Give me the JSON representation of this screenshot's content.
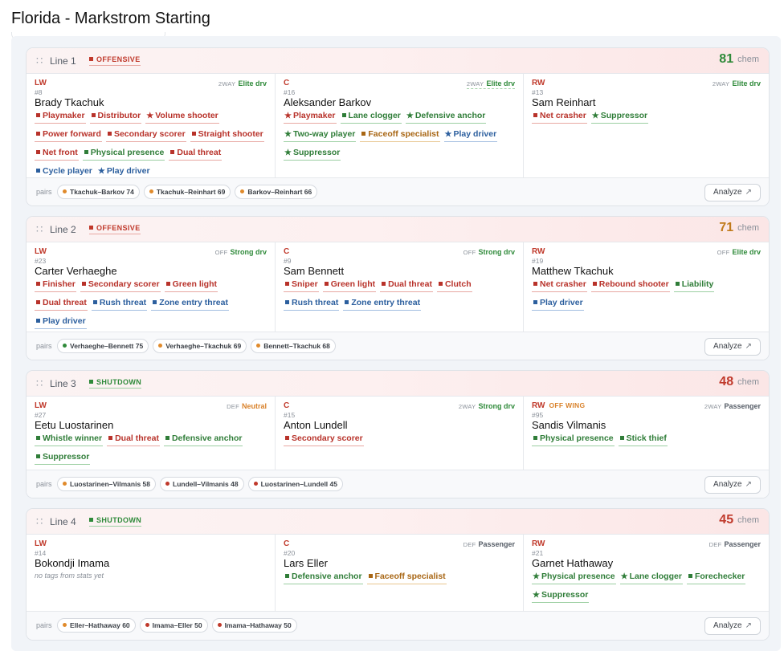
{
  "page_title": "Florida - Markstrom Starting",
  "analyze_label": "Analyze",
  "pairs_label": "pairs",
  "chem_unit": "chem",
  "lines": [
    {
      "name": "Line 1",
      "style": "OFFENSIVE",
      "chem": "81",
      "chem_color": "#2f8a3a",
      "players": [
        {
          "pos": "LW",
          "pos_note": "",
          "role_prefix": "2WAY",
          "role": "Elite drv",
          "num": "#8",
          "name": "Brady Tkachuk",
          "tags": [
            {
              "label": "Playmaker",
              "color": "red",
              "mark": "sq"
            },
            {
              "label": "Distributor",
              "color": "red",
              "mark": "sq"
            },
            {
              "label": "Volume shooter",
              "color": "red",
              "mark": "star"
            },
            {
              "label": "Power forward",
              "color": "red",
              "mark": "sq"
            },
            {
              "label": "Secondary scorer",
              "color": "red",
              "mark": "sq"
            },
            {
              "label": "Straight shooter",
              "color": "red",
              "mark": "sq"
            },
            {
              "label": "Net front",
              "color": "red",
              "mark": "sq"
            },
            {
              "label": "Physical presence",
              "color": "green",
              "mark": "sq"
            },
            {
              "label": "Dual threat",
              "color": "red",
              "mark": "sq"
            },
            {
              "label": "Cycle player",
              "color": "blue",
              "mark": "sq"
            },
            {
              "label": "Play driver",
              "color": "blue",
              "mark": "star"
            }
          ]
        },
        {
          "pos": "C",
          "pos_note": "",
          "role_prefix": "2WAY",
          "role": "Elite drv",
          "num": "#16",
          "name": "Aleksander Barkov",
          "tags": [
            {
              "label": "Playmaker",
              "color": "red",
              "mark": "star"
            },
            {
              "label": "Lane clogger",
              "color": "green",
              "mark": "sq"
            },
            {
              "label": "Defensive anchor",
              "color": "green",
              "mark": "star"
            },
            {
              "label": "Two-way player",
              "color": "green",
              "mark": "star"
            },
            {
              "label": "Faceoff specialist",
              "color": "orange",
              "mark": "sq"
            },
            {
              "label": "Play driver",
              "color": "blue",
              "mark": "star"
            },
            {
              "label": "Suppressor",
              "color": "green",
              "mark": "star"
            }
          ]
        },
        {
          "pos": "RW",
          "pos_note": "",
          "role_prefix": "2WAY",
          "role": "Elite drv",
          "num": "#13",
          "name": "Sam Reinhart",
          "tags": [
            {
              "label": "Net crasher",
              "color": "red",
              "mark": "sq"
            },
            {
              "label": "Suppressor",
              "color": "green",
              "mark": "star"
            }
          ]
        }
      ],
      "pairs": [
        {
          "label": "Tkachuk–Barkov 74",
          "dot": "orange"
        },
        {
          "label": "Tkachuk–Reinhart 69",
          "dot": "orange"
        },
        {
          "label": "Barkov–Reinhart 66",
          "dot": "orange"
        }
      ]
    },
    {
      "name": "Line 2",
      "style": "OFFENSIVE",
      "chem": "71",
      "chem_color": "#c07a1a",
      "players": [
        {
          "pos": "LW",
          "pos_note": "",
          "role_prefix": "OFF",
          "role": "Strong drv",
          "num": "#23",
          "name": "Carter Verhaeghe",
          "tags": [
            {
              "label": "Finisher",
              "color": "red",
              "mark": "sq"
            },
            {
              "label": "Secondary scorer",
              "color": "red",
              "mark": "sq"
            },
            {
              "label": "Green light",
              "color": "red",
              "mark": "sq"
            },
            {
              "label": "Dual threat",
              "color": "red",
              "mark": "sq"
            },
            {
              "label": "Rush threat",
              "color": "blue",
              "mark": "sq"
            },
            {
              "label": "Zone entry threat",
              "color": "blue",
              "mark": "sq"
            },
            {
              "label": "Play driver",
              "color": "blue",
              "mark": "sq"
            }
          ]
        },
        {
          "pos": "C",
          "pos_note": "",
          "role_prefix": "OFF",
          "role": "Strong drv",
          "num": "#9",
          "name": "Sam Bennett",
          "tags": [
            {
              "label": "Sniper",
              "color": "red",
              "mark": "sq"
            },
            {
              "label": "Green light",
              "color": "red",
              "mark": "sq"
            },
            {
              "label": "Dual threat",
              "color": "red",
              "mark": "sq"
            },
            {
              "label": "Clutch",
              "color": "red",
              "mark": "sq"
            },
            {
              "label": "Rush threat",
              "color": "blue",
              "mark": "sq"
            },
            {
              "label": "Zone entry threat",
              "color": "blue",
              "mark": "sq"
            }
          ]
        },
        {
          "pos": "RW",
          "pos_note": "",
          "role_prefix": "OFF",
          "role": "Elite drv",
          "num": "#19",
          "name": "Matthew Tkachuk",
          "tags": [
            {
              "label": "Net crasher",
              "color": "red",
              "mark": "sq"
            },
            {
              "label": "Rebound shooter",
              "color": "red",
              "mark": "sq"
            },
            {
              "label": "Liability",
              "color": "green",
              "mark": "sq"
            },
            {
              "label": "Play driver",
              "color": "blue",
              "mark": "sq"
            }
          ]
        }
      ],
      "pairs": [
        {
          "label": "Verhaeghe–Bennett 75",
          "dot": "green"
        },
        {
          "label": "Verhaeghe–Tkachuk 69",
          "dot": "orange"
        },
        {
          "label": "Bennett–Tkachuk 68",
          "dot": "orange"
        }
      ]
    },
    {
      "name": "Line 3",
      "style": "SHUTDOWN",
      "chem": "48",
      "chem_color": "#c0392b",
      "players": [
        {
          "pos": "LW",
          "pos_note": "",
          "role_prefix": "DEF",
          "role": "Neutral",
          "num": "#27",
          "name": "Eetu Luostarinen",
          "tags": [
            {
              "label": "Whistle winner",
              "color": "green",
              "mark": "sq"
            },
            {
              "label": "Dual threat",
              "color": "red",
              "mark": "sq"
            },
            {
              "label": "Defensive anchor",
              "color": "green",
              "mark": "sq"
            },
            {
              "label": "Suppressor",
              "color": "green",
              "mark": "sq"
            }
          ]
        },
        {
          "pos": "C",
          "pos_note": "",
          "role_prefix": "2WAY",
          "role": "Strong drv",
          "num": "#15",
          "name": "Anton Lundell",
          "tags": [
            {
              "label": "Secondary scorer",
              "color": "red",
              "mark": "sq"
            }
          ]
        },
        {
          "pos": "RW",
          "pos_note": "OFF WING",
          "role_prefix": "2WAY",
          "role": "Passenger",
          "num": "#95",
          "name": "Sandis Vilmanis",
          "tags": [
            {
              "label": "Physical presence",
              "color": "green",
              "mark": "sq"
            },
            {
              "label": "Stick thief",
              "color": "green",
              "mark": "sq"
            }
          ]
        }
      ],
      "pairs": [
        {
          "label": "Luostarinen–Vilmanis 58",
          "dot": "orange"
        },
        {
          "label": "Lundell–Vilmanis 48",
          "dot": "red"
        },
        {
          "label": "Luostarinen–Lundell 45",
          "dot": "red"
        }
      ]
    },
    {
      "name": "Line 4",
      "style": "SHUTDOWN",
      "chem": "45",
      "chem_color": "#c0392b",
      "players": [
        {
          "pos": "LW",
          "pos_note": "",
          "role_prefix": "",
          "role": "",
          "num": "#14",
          "name": "Bokondji Imama",
          "no_tags": "no tags from stats yet",
          "tags": []
        },
        {
          "pos": "C",
          "pos_note": "",
          "role_prefix": "DEF",
          "role": "Passenger",
          "num": "#20",
          "name": "Lars Eller",
          "tags": [
            {
              "label": "Defensive anchor",
              "color": "green",
              "mark": "sq"
            },
            {
              "label": "Faceoff specialist",
              "color": "orange",
              "mark": "sq"
            }
          ]
        },
        {
          "pos": "RW",
          "pos_note": "",
          "role_prefix": "DEF",
          "role": "Passenger",
          "num": "#21",
          "name": "Garnet Hathaway",
          "tags": [
            {
              "label": "Physical presence",
              "color": "green",
              "mark": "star"
            },
            {
              "label": "Lane clogger",
              "color": "green",
              "mark": "star"
            },
            {
              "label": "Forechecker",
              "color": "green",
              "mark": "sq"
            },
            {
              "label": "Suppressor",
              "color": "green",
              "mark": "star"
            }
          ]
        }
      ],
      "pairs": [
        {
          "label": "Eller–Hathaway 60",
          "dot": "orange"
        },
        {
          "label": "Imama–Eller 50",
          "dot": "red"
        },
        {
          "label": "Imama–Hathaway 50",
          "dot": "red"
        }
      ]
    }
  ]
}
